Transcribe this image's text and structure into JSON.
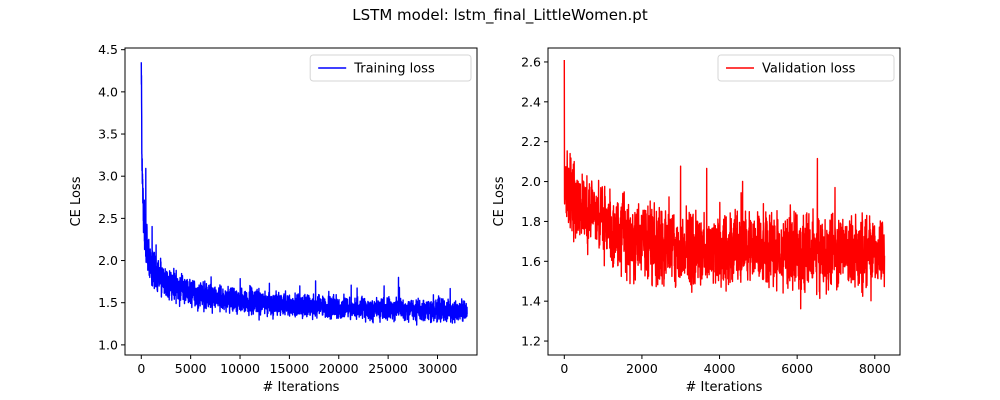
{
  "figure": {
    "suptitle": "LSTM model: lstm_final_LittleWomen.pt"
  },
  "chart_data": [
    {
      "type": "line",
      "xlabel": "# Iterations",
      "ylabel": "CE Loss",
      "xlim": [
        -1650,
        34000
      ],
      "ylim": [
        0.88,
        4.52
      ],
      "xticks": [
        0,
        5000,
        10000,
        15000,
        20000,
        25000,
        30000
      ],
      "yticks": [
        1.0,
        1.5,
        2.0,
        2.5,
        3.0,
        3.5,
        4.0,
        4.5
      ],
      "legend": {
        "position": "top-right"
      },
      "series": [
        {
          "name": "Training loss",
          "color": "#0000ff",
          "x_max": 33000,
          "points": 3300,
          "trend": [
            [
              0,
              4.35
            ],
            [
              60,
              3.3
            ],
            [
              150,
              2.7
            ],
            [
              300,
              2.35
            ],
            [
              600,
              2.1
            ],
            [
              1000,
              1.95
            ],
            [
              2000,
              1.8
            ],
            [
              3000,
              1.72
            ],
            [
              5000,
              1.62
            ],
            [
              8000,
              1.55
            ],
            [
              10000,
              1.52
            ],
            [
              15000,
              1.47
            ],
            [
              20000,
              1.44
            ],
            [
              25000,
              1.42
            ],
            [
              30000,
              1.41
            ],
            [
              33000,
              1.4
            ]
          ],
          "noise": [
            [
              0,
              0.35
            ],
            [
              1000,
              0.18
            ],
            [
              5000,
              0.14
            ],
            [
              15000,
              0.12
            ],
            [
              33000,
              0.11
            ]
          ],
          "min": 0.97,
          "max": 4.35
        }
      ]
    },
    {
      "type": "line",
      "xlabel": "# Iterations",
      "ylabel": "CE Loss",
      "xlim": [
        -420,
        8650
      ],
      "ylim": [
        1.13,
        2.67
      ],
      "xticks": [
        0,
        2000,
        4000,
        6000,
        8000
      ],
      "yticks": [
        1.2,
        1.4,
        1.6,
        1.8,
        2.0,
        2.2,
        2.4,
        2.6
      ],
      "legend": {
        "position": "top-right"
      },
      "series": [
        {
          "name": "Validation loss",
          "color": "#ff0000",
          "x_max": 8250,
          "points": 2000,
          "trend": [
            [
              0,
              1.95
            ],
            [
              300,
              1.9
            ],
            [
              800,
              1.82
            ],
            [
              1500,
              1.72
            ],
            [
              2500,
              1.68
            ],
            [
              4000,
              1.66
            ],
            [
              6000,
              1.65
            ],
            [
              8250,
              1.64
            ]
          ],
          "noise": [
            [
              0,
              0.16
            ],
            [
              1500,
              0.17
            ],
            [
              8250,
              0.17
            ]
          ],
          "min": 1.19,
          "max": 2.61
        }
      ]
    }
  ]
}
